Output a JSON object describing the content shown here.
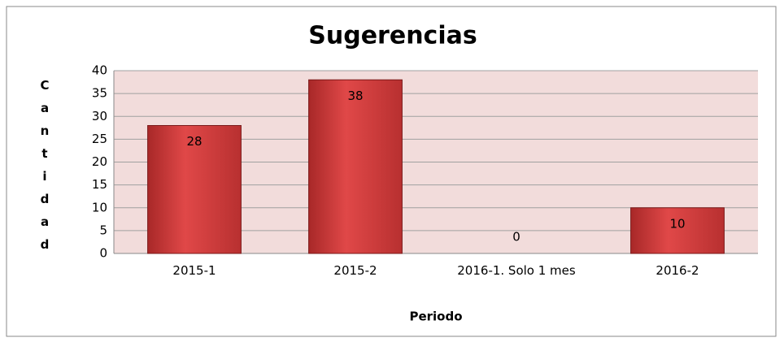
{
  "chart_data": {
    "type": "bar",
    "title": "Sugerencias",
    "categories": [
      "2015-1",
      "2015-2",
      "2016-1. Solo 1 mes",
      "2016-2"
    ],
    "values": [
      28,
      38,
      0,
      10
    ],
    "color": "#d43d3d",
    "xlabel": "Periodo",
    "ylabel": "Cantidad",
    "ylim": [
      0,
      40
    ],
    "yticks": [
      0,
      5,
      10,
      15,
      20,
      25,
      30,
      35,
      40
    ],
    "grid": true
  }
}
